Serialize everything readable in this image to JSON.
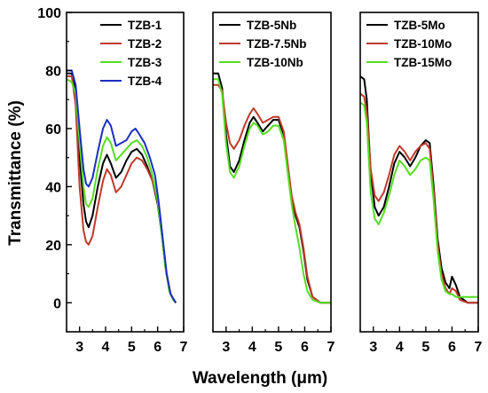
{
  "figure": {
    "ylabel": "Transmittance (%)",
    "xlabel": "Wavelength (μm)"
  },
  "chart_data": [
    {
      "type": "line",
      "panel": "left",
      "xlim": [
        2.5,
        7
      ],
      "ylim": [
        -10,
        100
      ],
      "xticks": [
        3,
        4,
        5,
        6,
        7
      ],
      "yticks": [
        0,
        20,
        40,
        60,
        80,
        100
      ],
      "legend_position": "top-right",
      "series": [
        {
          "name": "TZB-1",
          "color": "#000000",
          "points": [
            [
              2.5,
              79
            ],
            [
              2.7,
              79
            ],
            [
              2.85,
              72
            ],
            [
              3.0,
              50
            ],
            [
              3.15,
              34
            ],
            [
              3.25,
              28
            ],
            [
              3.35,
              26
            ],
            [
              3.5,
              30
            ],
            [
              3.7,
              40
            ],
            [
              3.9,
              48
            ],
            [
              4.05,
              51
            ],
            [
              4.2,
              48
            ],
            [
              4.4,
              43
            ],
            [
              4.6,
              45
            ],
            [
              4.8,
              49
            ],
            [
              5.0,
              52
            ],
            [
              5.2,
              53
            ],
            [
              5.4,
              51
            ],
            [
              5.6,
              47
            ],
            [
              5.8,
              42
            ],
            [
              6.0,
              34
            ],
            [
              6.15,
              24
            ],
            [
              6.3,
              12
            ],
            [
              6.45,
              4
            ],
            [
              6.6,
              1
            ],
            [
              6.7,
              0
            ]
          ]
        },
        {
          "name": "TZB-2",
          "color": "#c0392b",
          "points": [
            [
              2.5,
              78
            ],
            [
              2.7,
              78
            ],
            [
              2.85,
              68
            ],
            [
              3.0,
              40
            ],
            [
              3.15,
              25
            ],
            [
              3.25,
              21
            ],
            [
              3.35,
              20
            ],
            [
              3.5,
              23
            ],
            [
              3.7,
              33
            ],
            [
              3.9,
              42
            ],
            [
              4.05,
              46
            ],
            [
              4.2,
              44
            ],
            [
              4.4,
              38
            ],
            [
              4.6,
              40
            ],
            [
              4.8,
              44
            ],
            [
              5.0,
              48
            ],
            [
              5.2,
              50
            ],
            [
              5.4,
              49
            ],
            [
              5.6,
              46
            ],
            [
              5.8,
              42
            ],
            [
              6.0,
              35
            ],
            [
              6.15,
              25
            ],
            [
              6.3,
              12
            ],
            [
              6.45,
              4
            ],
            [
              6.6,
              1
            ],
            [
              6.7,
              0
            ]
          ]
        },
        {
          "name": "TZB-3",
          "color": "#55dd22",
          "points": [
            [
              2.5,
              77
            ],
            [
              2.7,
              76
            ],
            [
              2.85,
              72
            ],
            [
              3.0,
              55
            ],
            [
              3.15,
              40
            ],
            [
              3.25,
              34
            ],
            [
              3.35,
              33
            ],
            [
              3.5,
              36
            ],
            [
              3.7,
              46
            ],
            [
              3.9,
              54
            ],
            [
              4.05,
              57
            ],
            [
              4.2,
              55
            ],
            [
              4.4,
              49
            ],
            [
              4.6,
              51
            ],
            [
              4.8,
              53
            ],
            [
              5.0,
              55
            ],
            [
              5.2,
              56
            ],
            [
              5.4,
              54
            ],
            [
              5.6,
              50
            ],
            [
              5.8,
              44
            ],
            [
              6.0,
              35
            ],
            [
              6.15,
              24
            ],
            [
              6.3,
              12
            ],
            [
              6.45,
              4
            ],
            [
              6.6,
              1
            ],
            [
              6.7,
              0
            ]
          ]
        },
        {
          "name": "TZB-4",
          "color": "#1a2ec4",
          "points": [
            [
              2.5,
              80
            ],
            [
              2.7,
              80
            ],
            [
              2.85,
              75
            ],
            [
              3.0,
              60
            ],
            [
              3.15,
              46
            ],
            [
              3.25,
              41
            ],
            [
              3.35,
              40
            ],
            [
              3.5,
              43
            ],
            [
              3.7,
              52
            ],
            [
              3.9,
              60
            ],
            [
              4.05,
              63
            ],
            [
              4.2,
              61
            ],
            [
              4.4,
              54
            ],
            [
              4.6,
              55
            ],
            [
              4.8,
              56
            ],
            [
              5.0,
              59
            ],
            [
              5.15,
              60
            ],
            [
              5.3,
              58
            ],
            [
              5.5,
              55
            ],
            [
              5.7,
              50
            ],
            [
              5.9,
              44
            ],
            [
              6.05,
              34
            ],
            [
              6.2,
              22
            ],
            [
              6.35,
              10
            ],
            [
              6.5,
              3
            ],
            [
              6.7,
              0
            ]
          ]
        }
      ]
    },
    {
      "type": "line",
      "panel": "middle",
      "xlim": [
        2.5,
        7
      ],
      "ylim": [
        -10,
        100
      ],
      "xticks": [
        3,
        4,
        5,
        6,
        7
      ],
      "legend_position": "top-left",
      "series": [
        {
          "name": "TZB-5Nb",
          "color": "#000000",
          "points": [
            [
              2.5,
              79
            ],
            [
              2.7,
              79
            ],
            [
              2.85,
              74
            ],
            [
              3.0,
              58
            ],
            [
              3.15,
              47
            ],
            [
              3.3,
              45
            ],
            [
              3.5,
              49
            ],
            [
              3.7,
              56
            ],
            [
              3.9,
              62
            ],
            [
              4.05,
              64
            ],
            [
              4.2,
              62
            ],
            [
              4.4,
              59
            ],
            [
              4.6,
              61
            ],
            [
              4.8,
              63
            ],
            [
              5.0,
              63
            ],
            [
              5.2,
              58
            ],
            [
              5.35,
              46
            ],
            [
              5.5,
              36
            ],
            [
              5.65,
              30
            ],
            [
              5.8,
              26
            ],
            [
              5.95,
              18
            ],
            [
              6.1,
              8
            ],
            [
              6.3,
              2
            ],
            [
              6.6,
              0
            ],
            [
              7.0,
              0
            ]
          ]
        },
        {
          "name": "TZB-7.5Nb",
          "color": "#c0392b",
          "points": [
            [
              2.5,
              75
            ],
            [
              2.7,
              75
            ],
            [
              2.85,
              73
            ],
            [
              3.0,
              62
            ],
            [
              3.15,
              55
            ],
            [
              3.3,
              53
            ],
            [
              3.5,
              56
            ],
            [
              3.7,
              61
            ],
            [
              3.9,
              65
            ],
            [
              4.05,
              67
            ],
            [
              4.2,
              65
            ],
            [
              4.4,
              62
            ],
            [
              4.6,
              63
            ],
            [
              4.8,
              64
            ],
            [
              5.0,
              64
            ],
            [
              5.2,
              59
            ],
            [
              5.35,
              48
            ],
            [
              5.5,
              37
            ],
            [
              5.65,
              31
            ],
            [
              5.8,
              27
            ],
            [
              5.95,
              19
            ],
            [
              6.1,
              9
            ],
            [
              6.3,
              2
            ],
            [
              6.6,
              0
            ],
            [
              7.0,
              0
            ]
          ]
        },
        {
          "name": "TZB-10Nb",
          "color": "#55dd22",
          "points": [
            [
              2.5,
              77
            ],
            [
              2.7,
              77
            ],
            [
              2.85,
              72
            ],
            [
              3.0,
              55
            ],
            [
              3.15,
              45
            ],
            [
              3.3,
              43
            ],
            [
              3.5,
              47
            ],
            [
              3.7,
              54
            ],
            [
              3.9,
              60
            ],
            [
              4.05,
              62
            ],
            [
              4.2,
              61
            ],
            [
              4.4,
              58
            ],
            [
              4.6,
              59
            ],
            [
              4.8,
              61
            ],
            [
              5.0,
              61
            ],
            [
              5.2,
              56
            ],
            [
              5.35,
              45
            ],
            [
              5.5,
              34
            ],
            [
              5.65,
              26
            ],
            [
              5.8,
              19
            ],
            [
              5.95,
              10
            ],
            [
              6.1,
              4
            ],
            [
              6.3,
              1
            ],
            [
              6.6,
              0
            ],
            [
              7.0,
              0
            ]
          ]
        }
      ]
    },
    {
      "type": "line",
      "panel": "right",
      "xlim": [
        2.5,
        7
      ],
      "ylim": [
        -10,
        100
      ],
      "xticks": [
        3,
        4,
        5,
        6,
        7
      ],
      "legend_position": "top-left",
      "series": [
        {
          "name": "TZB-5Mo",
          "color": "#000000",
          "points": [
            [
              2.5,
              78
            ],
            [
              2.65,
              77
            ],
            [
              2.75,
              70
            ],
            [
              2.9,
              45
            ],
            [
              3.05,
              33
            ],
            [
              3.2,
              30
            ],
            [
              3.4,
              33
            ],
            [
              3.6,
              40
            ],
            [
              3.8,
              48
            ],
            [
              4.0,
              52
            ],
            [
              4.2,
              50
            ],
            [
              4.4,
              47
            ],
            [
              4.6,
              50
            ],
            [
              4.8,
              54
            ],
            [
              5.0,
              56
            ],
            [
              5.15,
              55
            ],
            [
              5.3,
              40
            ],
            [
              5.45,
              22
            ],
            [
              5.6,
              12
            ],
            [
              5.75,
              7
            ],
            [
              5.9,
              5
            ],
            [
              6.0,
              9
            ],
            [
              6.15,
              6
            ],
            [
              6.3,
              2
            ],
            [
              6.6,
              0
            ],
            [
              7.0,
              0
            ]
          ]
        },
        {
          "name": "TZB-10Mo",
          "color": "#c0392b",
          "points": [
            [
              2.5,
              72
            ],
            [
              2.65,
              71
            ],
            [
              2.75,
              66
            ],
            [
              2.9,
              46
            ],
            [
              3.05,
              37
            ],
            [
              3.2,
              35
            ],
            [
              3.4,
              38
            ],
            [
              3.6,
              44
            ],
            [
              3.8,
              51
            ],
            [
              4.0,
              54
            ],
            [
              4.2,
              52
            ],
            [
              4.4,
              49
            ],
            [
              4.6,
              52
            ],
            [
              4.8,
              54
            ],
            [
              5.0,
              55
            ],
            [
              5.15,
              53
            ],
            [
              5.3,
              38
            ],
            [
              5.45,
              20
            ],
            [
              5.6,
              10
            ],
            [
              5.75,
              5
            ],
            [
              5.9,
              3
            ],
            [
              6.0,
              5
            ],
            [
              6.15,
              4
            ],
            [
              6.3,
              1
            ],
            [
              6.6,
              0
            ],
            [
              7.0,
              0
            ]
          ]
        },
        {
          "name": "TZB-15Mo",
          "color": "#55dd22",
          "points": [
            [
              2.5,
              69
            ],
            [
              2.65,
              68
            ],
            [
              2.75,
              62
            ],
            [
              2.9,
              38
            ],
            [
              3.05,
              29
            ],
            [
              3.2,
              27
            ],
            [
              3.4,
              31
            ],
            [
              3.6,
              37
            ],
            [
              3.8,
              44
            ],
            [
              4.0,
              49
            ],
            [
              4.2,
              47
            ],
            [
              4.4,
              44
            ],
            [
              4.6,
              46
            ],
            [
              4.8,
              49
            ],
            [
              5.0,
              50
            ],
            [
              5.15,
              49
            ],
            [
              5.3,
              35
            ],
            [
              5.45,
              18
            ],
            [
              5.6,
              8
            ],
            [
              5.75,
              4
            ],
            [
              5.9,
              3
            ],
            [
              6.0,
              3
            ],
            [
              6.15,
              2
            ],
            [
              6.3,
              2
            ],
            [
              6.6,
              2
            ],
            [
              7.0,
              2
            ]
          ]
        }
      ]
    }
  ]
}
